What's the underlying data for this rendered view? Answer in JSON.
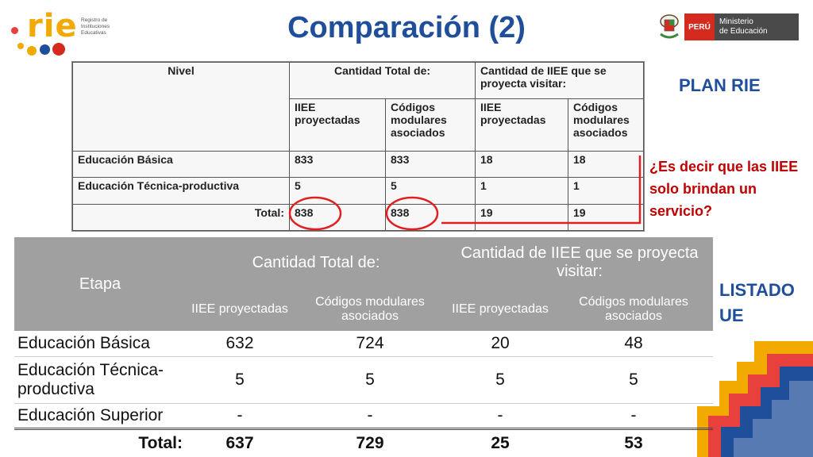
{
  "logo": {
    "word": "rie",
    "subtitle": [
      "Registro de",
      "Instituciones",
      "Educativas"
    ]
  },
  "title": "Comparación (2)",
  "ministry": {
    "country": "PERÚ",
    "name_line1": "Ministerio",
    "name_line2": "de Educación"
  },
  "scan_table": {
    "headers": {
      "nivel": "Nivel",
      "group1": "Cantidad Total de:",
      "group2": "Cantidad de IIEE que se proyecta visitar:",
      "sub1": "IIEE proyectadas",
      "sub2": "Códigos modulares asociados",
      "sub3": "IIEE proyectadas",
      "sub4": "Códigos modulares asociados"
    },
    "rows": [
      {
        "label": "Educación Básica",
        "v": [
          "833",
          "833",
          "18",
          "18"
        ]
      },
      {
        "label": "Educación Técnica-productiva",
        "v": [
          "5",
          "5",
          "1",
          "1"
        ]
      },
      {
        "label": "Total:",
        "v": [
          "838",
          "838",
          "19",
          "19"
        ]
      }
    ]
  },
  "plan_label": "PLAN RIE",
  "question": "¿Es decir que las IIEE solo brindan un servicio?",
  "listado_label": [
    "LISTADO",
    "UE"
  ],
  "main_table": {
    "headers": {
      "etapa": "Etapa",
      "group1": "Cantidad Total de:",
      "group2": "Cantidad de IIEE que se proyecta visitar:",
      "sub1": "IIEE proyectadas",
      "sub2": "Códigos modulares asociados",
      "sub3": "IIEE proyectadas",
      "sub4": "Códigos modulares asociados"
    },
    "rows": [
      {
        "label": "Educación Básica",
        "v": [
          "632",
          "724",
          "20",
          "48"
        ]
      },
      {
        "label": "Educación Técnica-productiva",
        "v": [
          "5",
          "5",
          "5",
          "5"
        ]
      },
      {
        "label": "Educación Superior",
        "v": [
          "-",
          "-",
          "-",
          "-"
        ]
      }
    ],
    "total": {
      "label": "Total:",
      "v": [
        "637",
        "729",
        "25",
        "53"
      ]
    }
  },
  "colors": {
    "title_blue": "#1f4e9a",
    "question_red": "#c00000",
    "header_gray": "#a0a0a0",
    "brand_yellow": "#f2a900",
    "peru_red": "#d52b1e"
  }
}
